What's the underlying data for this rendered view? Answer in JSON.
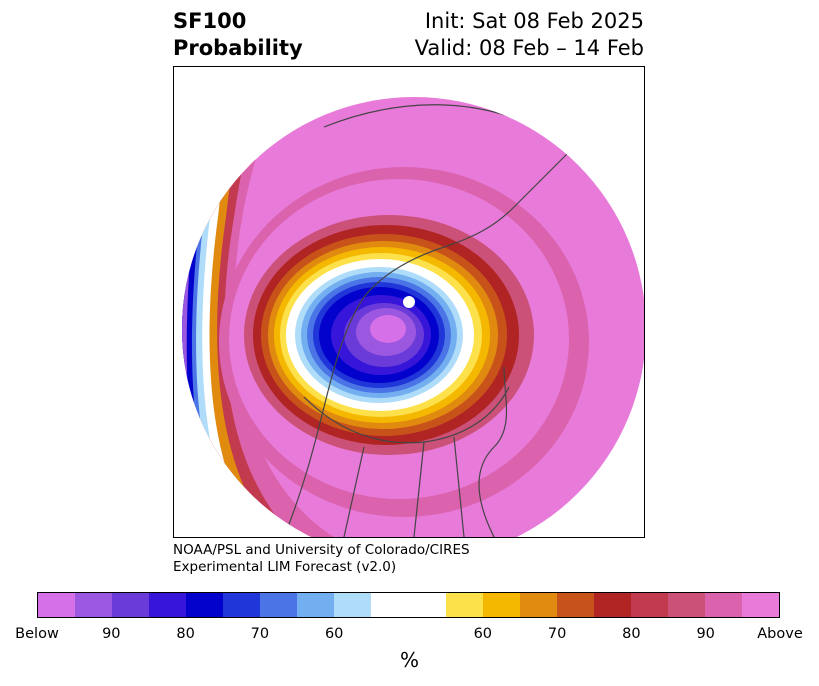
{
  "title": {
    "left_line1": "SF100",
    "left_line2": "Probability",
    "right_line1": "Init: Sat 08 Feb 2025",
    "right_line2": "Valid: 08 Feb – 14 Feb"
  },
  "credit": {
    "line1": "NOAA/PSL and University of Colorado/CIRES",
    "line2": "Experimental LIM Forecast (v2.0)"
  },
  "colorbar": {
    "unit": "%",
    "segments": [
      "#d670e8",
      "#9b57e0",
      "#6b3bd9",
      "#3716d9",
      "#0202cc",
      "#2136d8",
      "#4b74e6",
      "#72aef0",
      "#aedcf9",
      "#ffffff",
      "#ffffff",
      "#fde14a",
      "#f5b800",
      "#e08a10",
      "#c8531a",
      "#b02424",
      "#c23a4e",
      "#cc5178",
      "#db63ad",
      "#e87ada"
    ],
    "tick_labels": [
      "Below",
      "90",
      "80",
      "70",
      "60",
      "60",
      "70",
      "80",
      "90",
      "Above"
    ]
  },
  "map": {
    "projection": "polar stereographic (Northern Hemisphere)",
    "colors": {
      "background_above": "#e87ada",
      "below_core": "#0202cc"
    }
  }
}
